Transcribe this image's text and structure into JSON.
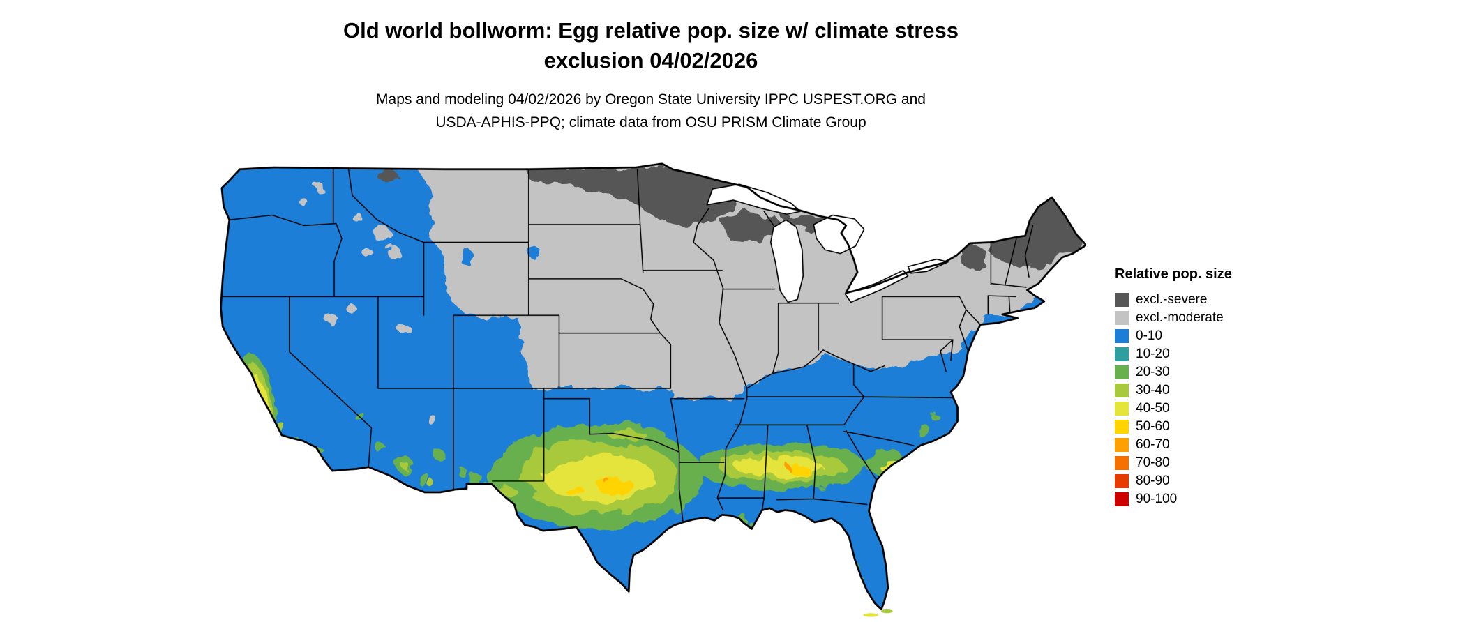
{
  "title": {
    "line1": "Old world bollworm: Egg relative pop. size w/ climate stress",
    "line2": "exclusion 04/02/2026"
  },
  "subtitle": {
    "line1": "Maps and modeling 04/02/2026 by Oregon State University IPPC USPEST.ORG and",
    "line2": "USDA-APHIS-PPQ; climate data from OSU PRISM Climate Group"
  },
  "legend": {
    "title": "Relative pop. size",
    "items": [
      {
        "label": "excl.-severe",
        "color": "#575757"
      },
      {
        "label": "excl.-moderate",
        "color": "#c3c3c3"
      },
      {
        "label": "0-10",
        "color": "#1c7ed6"
      },
      {
        "label": "10-20",
        "color": "#2e9e9e"
      },
      {
        "label": "20-30",
        "color": "#68b04e"
      },
      {
        "label": "30-40",
        "color": "#a7c93b"
      },
      {
        "label": "40-50",
        "color": "#e4e43c"
      },
      {
        "label": "50-60",
        "color": "#ffd400"
      },
      {
        "label": "60-70",
        "color": "#ffa000"
      },
      {
        "label": "70-80",
        "color": "#f57000"
      },
      {
        "label": "80-90",
        "color": "#e63a00"
      },
      {
        "label": "90-100",
        "color": "#cc0000"
      }
    ]
  }
}
